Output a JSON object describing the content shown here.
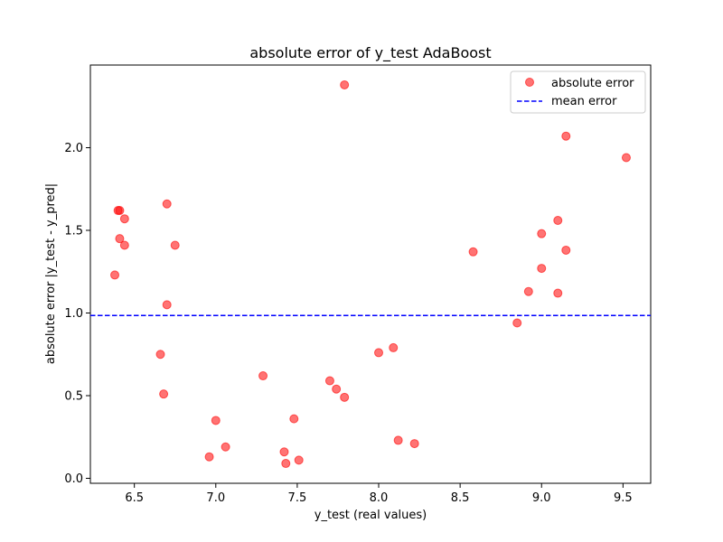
{
  "chart_data": {
    "type": "scatter",
    "title": "absolute error of y_test AdaBoost",
    "xlabel": "y_test (real values)",
    "ylabel": "absolute error |y_test - y_pred|",
    "xlim": [
      6.23,
      7.95,
      9.67
    ],
    "x_range": [
      6.23,
      9.67
    ],
    "y_range": [
      -0.03,
      2.5
    ],
    "x_ticks": [
      "6.5",
      "7.0",
      "7.5",
      "8.0",
      "8.5",
      "9.0",
      "9.5"
    ],
    "x_tick_values": [
      6.5,
      7.0,
      7.5,
      8.0,
      8.5,
      9.0,
      9.5
    ],
    "y_ticks": [
      "0.0",
      "0.5",
      "1.0",
      "1.5",
      "2.0"
    ],
    "y_tick_values": [
      0.0,
      0.5,
      1.0,
      1.5,
      2.0
    ],
    "grid": false,
    "legend_position": "top-right",
    "series": [
      {
        "name": "absolute error",
        "kind": "scatter",
        "color": "#ff0000",
        "points": [
          [
            6.38,
            1.23
          ],
          [
            6.4,
            1.62
          ],
          [
            6.41,
            1.62
          ],
          [
            6.41,
            1.45
          ],
          [
            6.44,
            1.41
          ],
          [
            6.44,
            1.57
          ],
          [
            6.66,
            0.75
          ],
          [
            6.68,
            0.51
          ],
          [
            6.7,
            1.66
          ],
          [
            6.7,
            1.05
          ],
          [
            6.75,
            1.41
          ],
          [
            6.96,
            0.13
          ],
          [
            7.0,
            0.35
          ],
          [
            7.06,
            0.19
          ],
          [
            7.29,
            0.62
          ],
          [
            7.42,
            0.16
          ],
          [
            7.43,
            0.09
          ],
          [
            7.48,
            0.36
          ],
          [
            7.51,
            0.11
          ],
          [
            7.7,
            0.59
          ],
          [
            7.74,
            0.54
          ],
          [
            7.79,
            0.49
          ],
          [
            7.79,
            2.38
          ],
          [
            8.0,
            0.76
          ],
          [
            8.09,
            0.79
          ],
          [
            8.12,
            0.23
          ],
          [
            8.22,
            0.21
          ],
          [
            8.58,
            1.37
          ],
          [
            8.85,
            0.94
          ],
          [
            8.92,
            1.13
          ],
          [
            9.0,
            1.48
          ],
          [
            9.0,
            1.27
          ],
          [
            9.1,
            1.56
          ],
          [
            9.1,
            1.12
          ],
          [
            9.15,
            2.07
          ],
          [
            9.15,
            1.38
          ],
          [
            9.52,
            1.94
          ]
        ]
      },
      {
        "name": "mean error",
        "kind": "hline",
        "color": "#0000ff",
        "value": 0.985
      }
    ]
  }
}
